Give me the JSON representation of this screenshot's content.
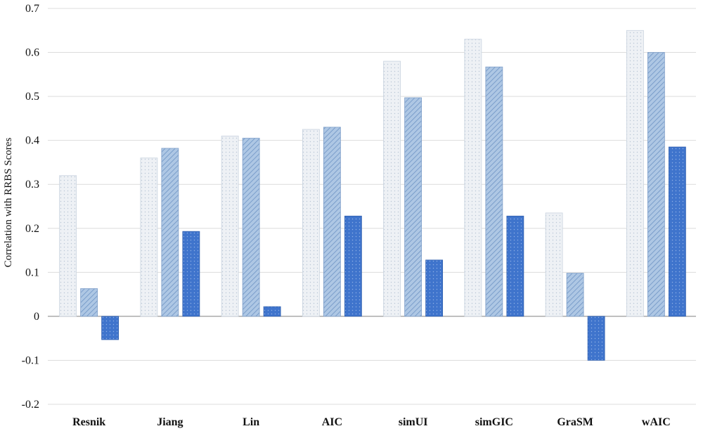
{
  "chart_data": {
    "type": "bar",
    "title": "",
    "xlabel": "",
    "ylabel": "Correlation with RRBS Scores",
    "ylim": [
      -0.2,
      0.7
    ],
    "yticks": [
      -0.2,
      -0.1,
      0,
      0.1,
      0.2,
      0.3,
      0.4,
      0.5,
      0.6,
      0.7
    ],
    "ytick_labels": [
      "-0.2",
      "-0.1",
      "0",
      "0.1",
      "0.2",
      "0.3",
      "0.4",
      "0.5",
      "0.6",
      "0.7"
    ],
    "grid": true,
    "legend": "none",
    "categories": [
      "Resnik",
      "Jiang",
      "Lin",
      "AIC",
      "simUI",
      "simGIC",
      "GraSM",
      "wAIC"
    ],
    "series": [
      {
        "values": [
          0.32,
          0.36,
          0.41,
          0.425,
          0.58,
          0.63,
          0.235,
          0.65
        ],
        "color": "#e9edf2",
        "pattern": "dots"
      },
      {
        "values": [
          0.063,
          0.382,
          0.405,
          0.43,
          0.497,
          0.567,
          0.098,
          0.6
        ],
        "color": "#a9c3e2",
        "pattern": "diagonal"
      },
      {
        "values": [
          -0.053,
          0.193,
          0.022,
          0.228,
          0.128,
          0.228,
          -0.1,
          0.385
        ],
        "color": "#3f74cc",
        "pattern": "dots-dark"
      }
    ]
  }
}
